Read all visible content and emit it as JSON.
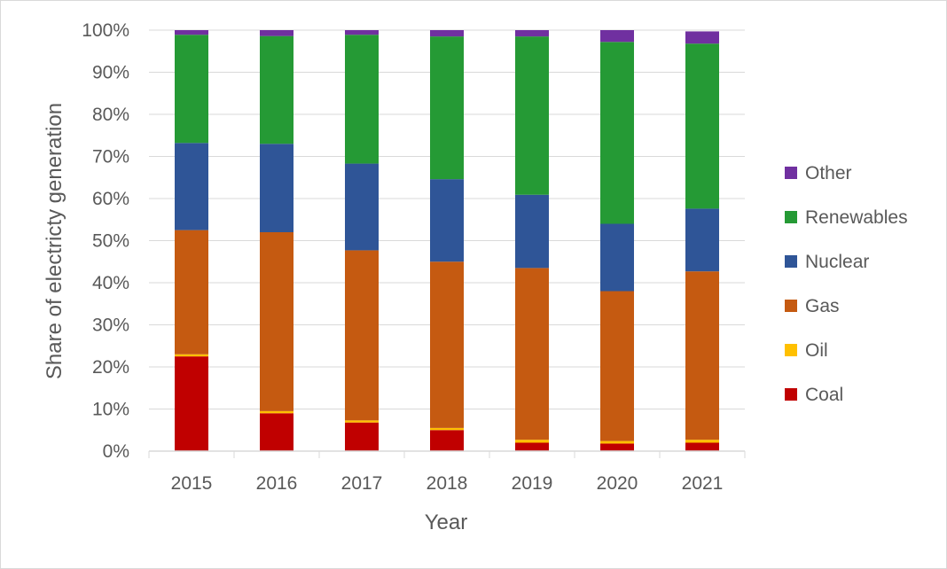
{
  "chart_data": {
    "type": "bar",
    "stacked": true,
    "percent_stacked": true,
    "title": "",
    "xlabel": "Year",
    "ylabel": "Share of electricty generation",
    "categories": [
      "2015",
      "2016",
      "2017",
      "2018",
      "2019",
      "2020",
      "2021"
    ],
    "ylim": [
      0,
      100
    ],
    "yticks": [
      "0%",
      "10%",
      "20%",
      "30%",
      "40%",
      "50%",
      "60%",
      "70%",
      "80%",
      "90%",
      "100%"
    ],
    "grid": "horizontal",
    "legend_position": "right",
    "series": [
      {
        "name": "Coal",
        "color": "#c00000",
        "values": [
          22.5,
          9.0,
          6.8,
          5.0,
          2.0,
          1.8,
          2.0
        ]
      },
      {
        "name": "Oil",
        "color": "#ffc000",
        "values": [
          0.5,
          0.5,
          0.5,
          0.5,
          0.7,
          0.6,
          0.7
        ]
      },
      {
        "name": "Gas",
        "color": "#c55a11",
        "values": [
          29.5,
          42.5,
          40.4,
          39.5,
          40.8,
          35.6,
          40.0
        ]
      },
      {
        "name": "Nuclear",
        "color": "#2f5597",
        "values": [
          20.7,
          21.0,
          20.6,
          19.6,
          17.4,
          16.0,
          14.9
        ]
      },
      {
        "name": "Renewables",
        "color": "#259a35",
        "values": [
          25.7,
          25.6,
          30.6,
          33.9,
          37.6,
          43.2,
          39.2
        ]
      },
      {
        "name": "Other",
        "color": "#7030a0",
        "values": [
          1.1,
          1.4,
          1.1,
          1.5,
          1.5,
          2.8,
          2.9
        ]
      }
    ],
    "legend_order": [
      "Other",
      "Renewables",
      "Nuclear",
      "Gas",
      "Oil",
      "Coal"
    ]
  }
}
